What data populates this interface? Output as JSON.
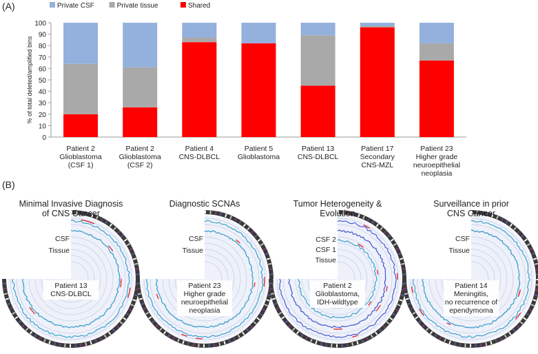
{
  "panel_a": {
    "label": "(A)"
  },
  "panel_b": {
    "label": "(B)",
    "panels": [
      {
        "title_lines": [
          "Minimal Invasive Diagnosis",
          "of CNS Cancer"
        ],
        "ring_labels": [
          "CSF",
          "Tissue"
        ],
        "center_lines": [
          "Patient 13",
          "CNS-DLBCL"
        ]
      },
      {
        "title_lines": [
          "Diagnostic SCNAs"
        ],
        "ring_labels": [
          "CSF",
          "Tissue"
        ],
        "center_lines": [
          "Patient 23",
          "Higher grade",
          "neuroepithelial",
          "neoplasia"
        ]
      },
      {
        "title_lines": [
          "Tumor Heterogeneity &",
          "Evolution"
        ],
        "ring_labels": [
          "CSF 2",
          "CSF 1",
          "Tissue"
        ],
        "center_lines": [
          "Patient 2",
          "Glioblastoma,",
          "IDH-wildtype"
        ]
      },
      {
        "title_lines": [
          "Surveillance in prior",
          "CNS Cancer"
        ],
        "ring_labels": [
          "CSF",
          "Tissue"
        ],
        "center_lines": [
          "Patient 14",
          "Meningitis,",
          "no recurrence of",
          "ependymoma"
        ]
      }
    ]
  },
  "chart_data": {
    "type": "bar",
    "stacked": true,
    "ylabel": "% of total deleted/amplified bins",
    "ylim": [
      0,
      100
    ],
    "yticks": [
      0,
      10,
      20,
      30,
      40,
      50,
      60,
      70,
      80,
      90,
      100
    ],
    "legend_position": "top-left",
    "categories": [
      [
        "Patient 2",
        "Glioblastoma",
        "(CSF 1)"
      ],
      [
        "Patient 2",
        "Glioblastoma",
        "(CSF 2)"
      ],
      [
        "Patient 4",
        "CNS-DLBCL"
      ],
      [
        "Patient 5",
        "Glioblastoma"
      ],
      [
        "Patient 13",
        "CNS-DLBCL"
      ],
      [
        "Patient 17",
        "Secondary",
        "CNS-MZL"
      ],
      [
        "Patient 23",
        "Higher grade",
        "neuroepithelial",
        "neoplasia"
      ]
    ],
    "series": [
      {
        "name": "Shared",
        "color": "#ff0000",
        "values": [
          20,
          26,
          83,
          82,
          45,
          96,
          67
        ]
      },
      {
        "name": "Private tissue",
        "color": "#aaa9a9",
        "values": [
          44,
          35,
          4,
          0,
          44,
          1,
          15
        ]
      },
      {
        "name": "Private CSF",
        "color": "#94b0dc",
        "values": [
          36,
          39,
          13,
          18,
          11,
          3,
          18
        ]
      }
    ],
    "legend_order": [
      "Private CSF",
      "Private tissue",
      "Shared"
    ]
  }
}
